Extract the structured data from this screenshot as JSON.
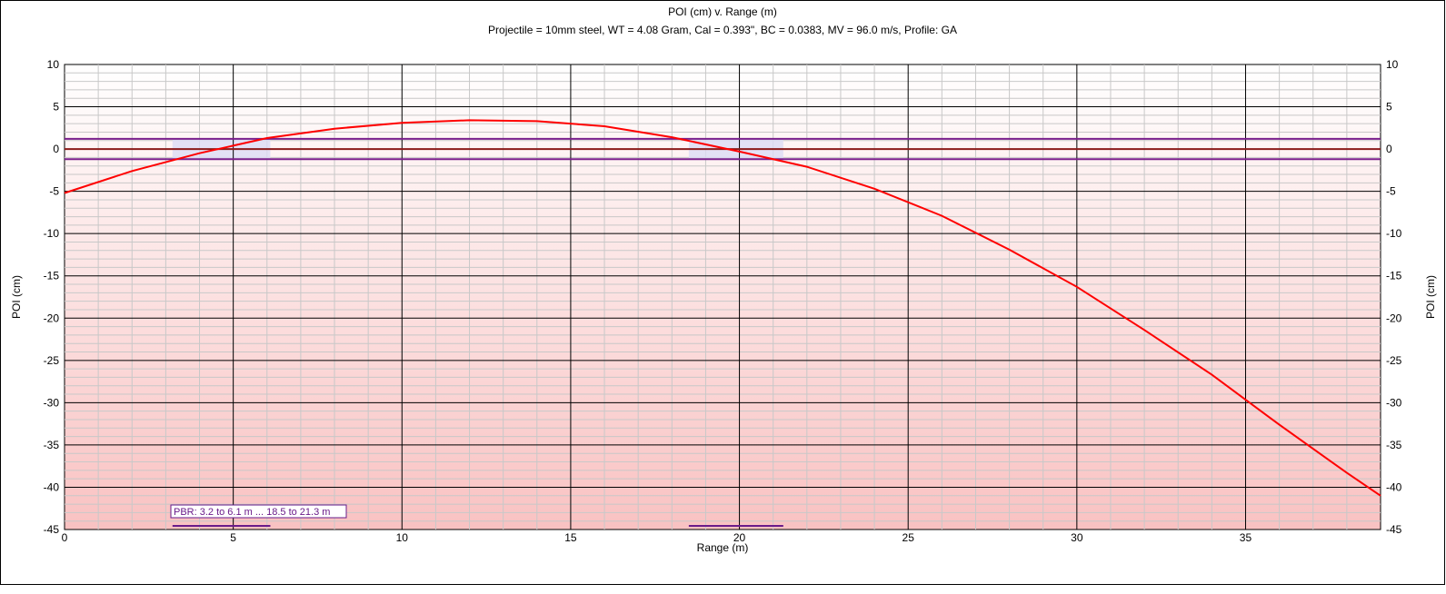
{
  "chart_data": {
    "type": "line",
    "title": "POI (cm) v. Range (m)",
    "subtitle": "Projectile = 10mm steel, WT = 4.08 Gram, Cal = 0.393\", BC = 0.0383, MV = 96.0 m/s, Profile: GA",
    "xlabel": "Range (m)",
    "ylabel": "POI (cm)",
    "ylabel_right": "POI (cm)",
    "xlim": [
      0,
      39
    ],
    "ylim": [
      -45,
      10
    ],
    "x_ticks": [
      0,
      5,
      10,
      15,
      20,
      25,
      30,
      35
    ],
    "y_ticks": [
      10,
      5,
      0,
      -5,
      -10,
      -15,
      -20,
      -25,
      -30,
      -35,
      -40,
      -45
    ],
    "grid": true,
    "series": [
      {
        "color": "#ff0000",
        "x": [
          0,
          2,
          4,
          6,
          8,
          10,
          12,
          14,
          16,
          18,
          20,
          22,
          24,
          26,
          28,
          30,
          32,
          34,
          36,
          38,
          39
        ],
        "y": [
          -5.2,
          -2.6,
          -0.5,
          1.3,
          2.4,
          3.1,
          3.4,
          3.3,
          2.7,
          1.4,
          -0.3,
          -2.1,
          -4.7,
          -7.9,
          -11.9,
          -16.3,
          -21.4,
          -26.7,
          -32.6,
          -38.3,
          -41.0
        ]
      }
    ],
    "reference_lines": {
      "zero": 0,
      "band_upper": 1.2,
      "band_lower": -1.2,
      "zero_color": "#8b1a1a",
      "band_color": "#7a1f8c"
    },
    "pbr": {
      "label": "PBR: 3.2 to 6.1 m ... 18.5 to 21.3 m",
      "ranges": [
        [
          3.2,
          6.1
        ],
        [
          18.5,
          21.3
        ]
      ],
      "color": "#6a1b8a"
    }
  }
}
